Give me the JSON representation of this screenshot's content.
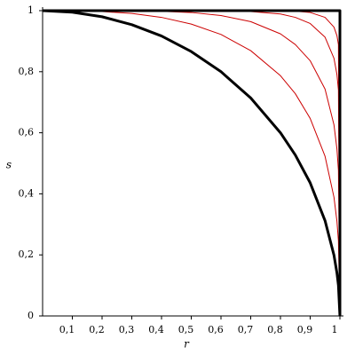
{
  "chart_data": {
    "type": "line",
    "xlabel": "r",
    "ylabel": "s",
    "x": [
      0,
      0.1,
      0.2,
      0.3,
      0.4,
      0.5,
      0.6,
      0.7,
      0.8,
      0.85,
      0.9,
      0.95,
      0.98,
      0.99,
      0.995,
      1
    ],
    "series": [
      {
        "color": "#000000",
        "values": [
          1,
          0.995,
          0.98,
          0.954,
          0.917,
          0.866,
          0.8,
          0.714,
          0.6,
          0.527,
          0.436,
          0.312,
          0.199,
          0.141,
          0.1,
          0
        ]
      },
      {
        "color": "#cc0000",
        "values": [
          1,
          1,
          0.997,
          0.991,
          0.978,
          0.956,
          0.922,
          0.869,
          0.787,
          0.728,
          0.647,
          0.523,
          0.389,
          0.31,
          0.246,
          0
        ]
      },
      {
        "color": "#cc0000",
        "values": [
          1,
          1,
          1,
          1,
          0.998,
          0.994,
          0.984,
          0.964,
          0.924,
          0.889,
          0.836,
          0.743,
          0.626,
          0.547,
          0.477,
          0
        ]
      },
      {
        "color": "#cc0000",
        "values": [
          1,
          1,
          1,
          1,
          1,
          1,
          0.999,
          0.997,
          0.989,
          0.978,
          0.958,
          0.913,
          0.844,
          0.791,
          0.74,
          0
        ]
      },
      {
        "color": "#cc0000",
        "values": [
          1,
          1,
          1,
          1,
          1,
          1,
          1,
          1,
          0.999,
          0.998,
          0.994,
          0.978,
          0.946,
          0.918,
          0.889,
          0
        ]
      },
      {
        "color": "#000000",
        "x": [
          0,
          1,
          1
        ],
        "values": [
          1,
          1,
          0
        ]
      }
    ],
    "xlim": [
      0,
      1
    ],
    "ylim": [
      0,
      1
    ],
    "xticks": [
      {
        "value": 0.1,
        "label": "0,1"
      },
      {
        "value": 0.2,
        "label": "0,2"
      },
      {
        "value": 0.3,
        "label": "0,3"
      },
      {
        "value": 0.4,
        "label": "0,4"
      },
      {
        "value": 0.5,
        "label": "0,5"
      },
      {
        "value": 0.6,
        "label": "0,6"
      },
      {
        "value": 0.7,
        "label": "0,7"
      },
      {
        "value": 0.8,
        "label": "0,8"
      },
      {
        "value": 0.9,
        "label": "0,9"
      },
      1
    ],
    "yticks": [
      0,
      {
        "value": 0.2,
        "label": "0,2"
      },
      {
        "value": 0.4,
        "label": "0,4"
      },
      {
        "value": 0.6,
        "label": "0,6"
      },
      {
        "value": 0.8,
        "label": "0,8"
      },
      1
    ],
    "grid": false
  }
}
